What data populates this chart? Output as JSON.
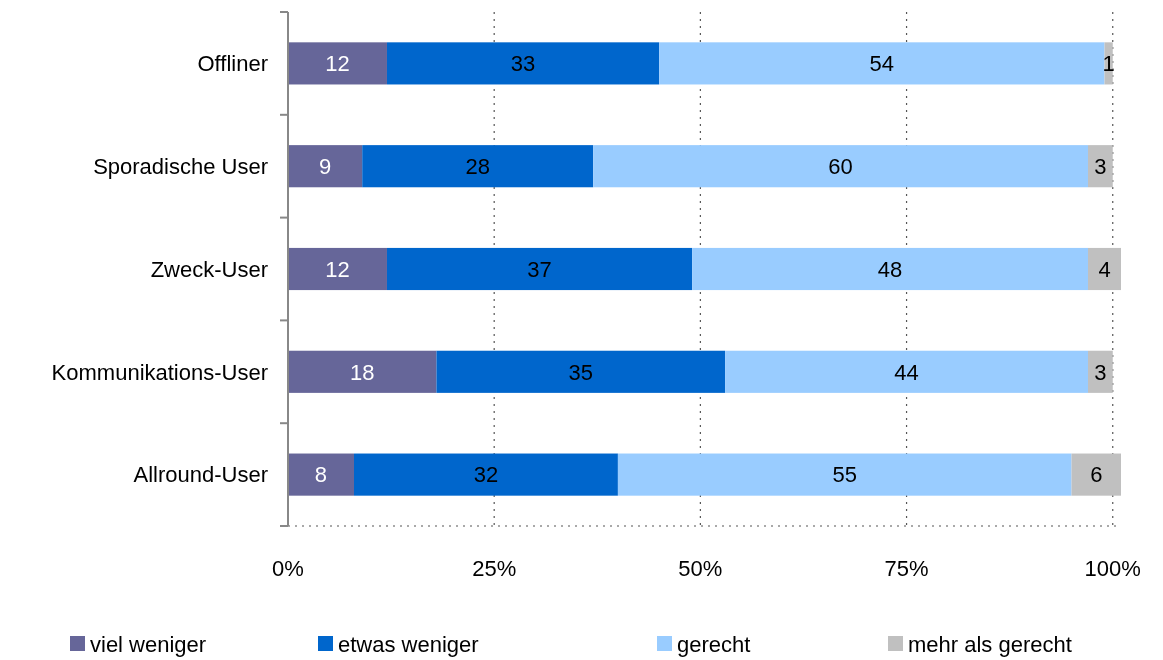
{
  "chart_data": {
    "type": "bar",
    "orientation": "horizontal",
    "stacked": true,
    "categories": [
      "Offliner",
      "Sporadische User",
      "Zweck-User",
      "Kommunikations-User",
      "Allround-User"
    ],
    "series": [
      {
        "name": "viel weniger",
        "color": "#666699",
        "values": [
          12,
          9,
          12,
          18,
          8
        ]
      },
      {
        "name": "etwas weniger",
        "color": "#0066cc",
        "values": [
          33,
          28,
          37,
          35,
          32
        ]
      },
      {
        "name": "gerecht",
        "color": "#99ccff",
        "values": [
          54,
          60,
          48,
          44,
          55
        ]
      },
      {
        "name": "mehr als gerecht",
        "color": "#c0c0c0",
        "values": [
          1,
          3,
          4,
          3,
          6
        ]
      }
    ],
    "xlim": [
      0,
      101
    ],
    "xticks": [
      {
        "value": 0,
        "label": "0%"
      },
      {
        "value": 25,
        "label": "25%"
      },
      {
        "value": 50,
        "label": "50%"
      },
      {
        "value": 75,
        "label": "75%"
      },
      {
        "value": 100,
        "label": "100%"
      }
    ],
    "grid": "x",
    "data_labels": true,
    "legend": "bottom"
  }
}
